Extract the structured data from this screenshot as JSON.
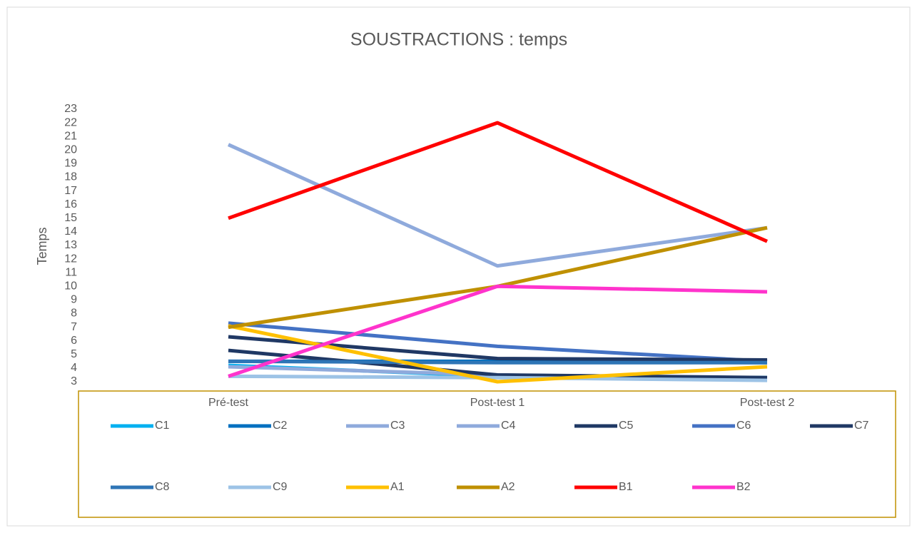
{
  "chart_data": {
    "type": "line",
    "title": "SOUSTRACTIONS : temps",
    "y_label": "Temps",
    "categories": [
      "Pré-test",
      "Post-test 1",
      "Post-test 2"
    ],
    "ylim": [
      3,
      23
    ],
    "yticks": [
      3,
      4,
      5,
      6,
      7,
      8,
      9,
      10,
      11,
      12,
      13,
      14,
      15,
      16,
      17,
      18,
      19,
      20,
      21,
      22,
      23
    ],
    "grid": false,
    "legend": "bottom",
    "series": [
      {
        "name": "C1",
        "color": "#00b0f0",
        "values": [
          4.2,
          3.4,
          3.3
        ]
      },
      {
        "name": "C2",
        "color": "#0070c0",
        "values": [
          4.5,
          4.5,
          4.4
        ]
      },
      {
        "name": "C3",
        "color": "#8faadc",
        "values": [
          4.1,
          3.5,
          3.2
        ]
      },
      {
        "name": "C4",
        "color": "#8faadc",
        "values": [
          20.4,
          11.5,
          14.3
        ]
      },
      {
        "name": "C5",
        "color": "#1f3864",
        "values": [
          5.3,
          3.5,
          3.3
        ]
      },
      {
        "name": "C6",
        "color": "#4472c4",
        "values": [
          7.3,
          5.6,
          4.5
        ]
      },
      {
        "name": "C7",
        "color": "#203864",
        "values": [
          6.3,
          4.7,
          4.6
        ]
      },
      {
        "name": "C8",
        "color": "#2e75b6",
        "values": [
          4.5,
          4.4,
          4.4
        ]
      },
      {
        "name": "C9",
        "color": "#9dc3e6",
        "values": [
          3.4,
          3.3,
          3.1
        ]
      },
      {
        "name": "A1",
        "color": "#ffc000",
        "values": [
          7.1,
          3.0,
          4.1
        ]
      },
      {
        "name": "A2",
        "color": "#bf9000",
        "values": [
          7.0,
          10.0,
          14.3
        ]
      },
      {
        "name": "B1",
        "color": "#ff0000",
        "values": [
          15.0,
          22.0,
          13.3
        ]
      },
      {
        "name": "B2",
        "color": "#ff33cc",
        "values": [
          3.4,
          10.0,
          9.6
        ]
      }
    ]
  }
}
